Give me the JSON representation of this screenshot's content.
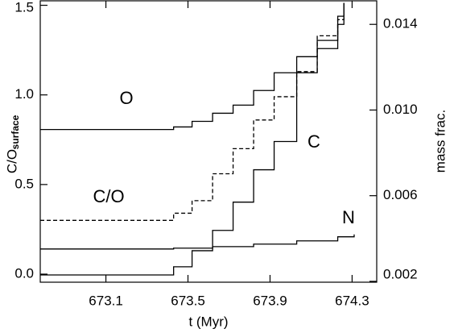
{
  "chart_data": {
    "type": "line",
    "step": "post",
    "xlabel": "t (Myr)",
    "ylabel": "C/O",
    "ylabel_sub": "surface",
    "y2label": "mass frac.",
    "xlim": [
      672.78,
      674.42
    ],
    "xticks": [
      673.1,
      673.5,
      673.9,
      674.3
    ],
    "ylim": [
      -0.045,
      1.525
    ],
    "yticks": [
      {
        "value": 0,
        "label": "0.0"
      },
      0.5,
      {
        "value": 1,
        "label": "1.0"
      },
      1.5
    ],
    "y2lim": [
      0.00196,
      0.0151
    ],
    "y2ticks": [
      0.002,
      0.006,
      {
        "value": 0.01,
        "label": "0.010"
      },
      0.014
    ],
    "series": [
      {
        "name": "O",
        "color": "#000",
        "axis": "y2",
        "x": [
          672.78,
          673.43,
          673.52,
          673.62,
          673.72,
          673.82,
          673.92,
          674.03,
          674.13,
          674.23,
          674.26
        ],
        "values": [
          0.00909,
          0.00921,
          0.00947,
          0.00985,
          0.01023,
          0.01091,
          0.01174,
          0.01249,
          0.01325,
          0.014,
          0.015
        ]
      },
      {
        "name": "C",
        "color": "#000",
        "axis": "y2",
        "x": [
          672.78,
          673.43,
          673.52,
          673.62,
          673.72,
          673.82,
          673.92,
          674.03,
          674.13,
          674.23,
          674.26
        ],
        "values": [
          0.0023,
          0.00268,
          0.00343,
          0.00438,
          0.0057,
          0.00721,
          0.00853,
          0.01174,
          0.01287,
          0.01438,
          0.015
        ]
      },
      {
        "name": "C/O",
        "color": "#000",
        "dashed": true,
        "x": [
          672.78,
          673.43,
          673.52,
          673.62,
          673.72,
          673.82,
          673.92,
          674.03,
          674.13,
          674.23,
          674.26
        ],
        "values": [
          0.3,
          0.34,
          0.41,
          0.56,
          0.7,
          0.86,
          0.99,
          1.13,
          1.33,
          1.42,
          1.45
        ]
      },
      {
        "name": "N",
        "color": "#000",
        "axis": "y2",
        "x": [
          672.78,
          673.43,
          673.62,
          673.82,
          674.03,
          674.23,
          674.31
        ],
        "values": [
          0.00351,
          0.00355,
          0.00362,
          0.00374,
          0.00389,
          0.00408,
          0.00419
        ]
      }
    ]
  }
}
